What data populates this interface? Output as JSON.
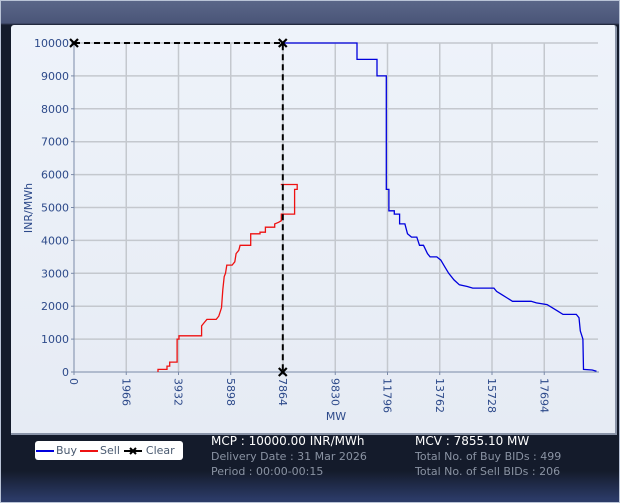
{
  "chart_data": {
    "type": "line",
    "title": "",
    "xlabel": "MW",
    "ylabel": "INR/MWh",
    "xlim": [
      0,
      19660
    ],
    "ylim": [
      0,
      10000
    ],
    "x_ticks": [
      "0",
      "1966",
      "3932",
      "5898",
      "7864",
      "9830",
      "11796",
      "13762",
      "15728",
      "17694"
    ],
    "y_ticks": [
      "0",
      "1000",
      "2000",
      "3000",
      "4000",
      "5000",
      "6000",
      "7000",
      "8000",
      "9000",
      "10000"
    ],
    "grid": true,
    "legend_position": "bottom-left",
    "series": [
      {
        "name": "Buy",
        "color": "#0000dd",
        "points": [
          [
            7864,
            10000
          ],
          [
            10650,
            10000
          ],
          [
            10650,
            9500
          ],
          [
            11400,
            9500
          ],
          [
            11400,
            9000
          ],
          [
            11750,
            9000
          ],
          [
            11750,
            5550
          ],
          [
            11850,
            5550
          ],
          [
            11850,
            4900
          ],
          [
            12050,
            4900
          ],
          [
            12050,
            4800
          ],
          [
            12250,
            4800
          ],
          [
            12250,
            4500
          ],
          [
            12450,
            4500
          ],
          [
            12550,
            4200
          ],
          [
            12700,
            4100
          ],
          [
            12900,
            4100
          ],
          [
            13000,
            3850
          ],
          [
            13150,
            3850
          ],
          [
            13300,
            3600
          ],
          [
            13400,
            3500
          ],
          [
            13650,
            3500
          ],
          [
            13800,
            3400
          ],
          [
            13950,
            3200
          ],
          [
            14100,
            3000
          ],
          [
            14300,
            2800
          ],
          [
            14500,
            2650
          ],
          [
            14800,
            2600
          ],
          [
            15000,
            2550
          ],
          [
            15800,
            2550
          ],
          [
            15900,
            2450
          ],
          [
            16100,
            2350
          ],
          [
            16300,
            2250
          ],
          [
            16500,
            2150
          ],
          [
            17200,
            2150
          ],
          [
            17400,
            2100
          ],
          [
            17800,
            2050
          ],
          [
            18000,
            1950
          ],
          [
            18200,
            1850
          ],
          [
            18400,
            1750
          ],
          [
            18900,
            1750
          ],
          [
            19000,
            1650
          ],
          [
            19050,
            1250
          ],
          [
            19150,
            1000
          ],
          [
            19170,
            80
          ],
          [
            19500,
            60
          ],
          [
            19660,
            20
          ]
        ]
      },
      {
        "name": "Sell",
        "color": "#ee1111",
        "points": [
          [
            3160,
            0
          ],
          [
            3160,
            80
          ],
          [
            3500,
            80
          ],
          [
            3500,
            180
          ],
          [
            3600,
            180
          ],
          [
            3600,
            300
          ],
          [
            3880,
            300
          ],
          [
            3880,
            1000
          ],
          [
            3950,
            1000
          ],
          [
            3950,
            1100
          ],
          [
            4800,
            1100
          ],
          [
            4800,
            1400
          ],
          [
            4900,
            1500
          ],
          [
            5000,
            1600
          ],
          [
            5350,
            1600
          ],
          [
            5450,
            1700
          ],
          [
            5550,
            1950
          ],
          [
            5600,
            2500
          ],
          [
            5650,
            2900
          ],
          [
            5700,
            3000
          ],
          [
            5750,
            3250
          ],
          [
            5950,
            3250
          ],
          [
            6050,
            3350
          ],
          [
            6100,
            3600
          ],
          [
            6200,
            3700
          ],
          [
            6250,
            3850
          ],
          [
            6650,
            3850
          ],
          [
            6650,
            4200
          ],
          [
            7000,
            4200
          ],
          [
            7000,
            4250
          ],
          [
            7200,
            4250
          ],
          [
            7200,
            4400
          ],
          [
            7550,
            4400
          ],
          [
            7550,
            4500
          ],
          [
            7700,
            4550
          ],
          [
            7800,
            4600
          ],
          [
            7800,
            4800
          ],
          [
            8300,
            4800
          ],
          [
            8300,
            5550
          ],
          [
            8400,
            5550
          ],
          [
            8400,
            5700
          ],
          [
            7780,
            5700
          ]
        ]
      },
      {
        "name": "Clear",
        "color": "#000000",
        "style": "dashed",
        "points": [
          [
            0,
            10000
          ],
          [
            7855.1,
            10000
          ],
          [
            7855.1,
            0
          ]
        ]
      }
    ]
  },
  "chart": {
    "ylabel": "INR/MWh",
    "xlabel": "MW",
    "y_ticks": [
      "10000",
      "9000",
      "8000",
      "7000",
      "6000",
      "5000",
      "4000",
      "3000",
      "2000",
      "1000",
      "0"
    ],
    "x_ticks": [
      "0",
      "1966",
      "3932",
      "5898",
      "7864",
      "9830",
      "11796",
      "13762",
      "15728",
      "17694"
    ]
  },
  "legend": {
    "buy_label": "Buy",
    "sell_label": "Sell",
    "clear_label": "Clear",
    "buy_color": "#0000dd",
    "sell_color": "#ee1111",
    "clear_color": "#000000"
  },
  "stats": {
    "mcp": "MCP : 10000.00 INR/MWh",
    "delivery_date": "Delivery Date : 31 Mar 2026",
    "period": "Period :  00:00-00:15",
    "mcv": "MCV : 7855.10 MW",
    "total_buy_bids": "Total No. of Buy BIDs : 499",
    "total_sell_bids": "Total No. of Sell BIDs : 206"
  }
}
